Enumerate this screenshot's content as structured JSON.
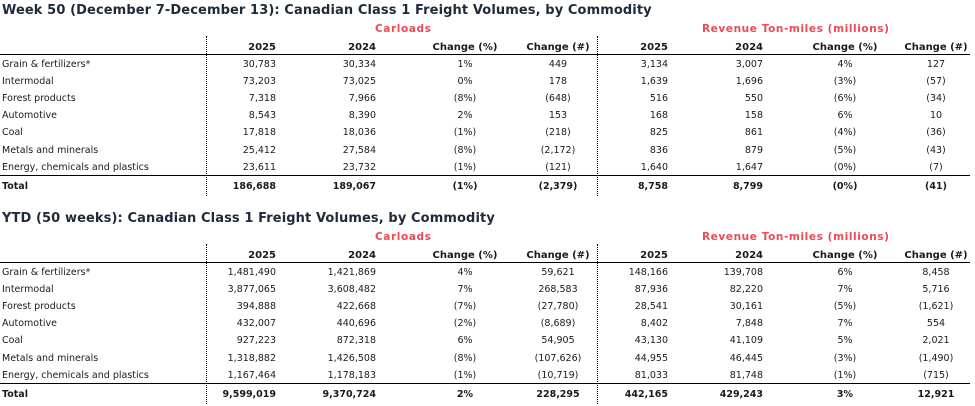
{
  "tables": [
    {
      "title": "Week 50 (December 7-December 13): Canadian Class 1 Freight Volumes, by Commodity",
      "group_labels": {
        "carloads": "Carloads",
        "revenue": "Revenue Ton-miles (millions)"
      },
      "columns": [
        "2025",
        "2024",
        "Change (%)",
        "Change (#)",
        "2025",
        "2024",
        "Change (%)",
        "Change (#)"
      ],
      "rows": [
        {
          "label": "Grain & fertilizers*",
          "values": [
            "30,783",
            "30,334",
            "1%",
            "449",
            "3,134",
            "3,007",
            "4%",
            "127"
          ]
        },
        {
          "label": "Intermodal",
          "values": [
            "73,203",
            "73,025",
            "0%",
            "178",
            "1,639",
            "1,696",
            "(3%)",
            "(57)"
          ]
        },
        {
          "label": "Forest products",
          "values": [
            "7,318",
            "7,966",
            "(8%)",
            "(648)",
            "516",
            "550",
            "(6%)",
            "(34)"
          ]
        },
        {
          "label": "Automotive",
          "values": [
            "8,543",
            "8,390",
            "2%",
            "153",
            "168",
            "158",
            "6%",
            "10"
          ]
        },
        {
          "label": "Coal",
          "values": [
            "17,818",
            "18,036",
            "(1%)",
            "(218)",
            "825",
            "861",
            "(4%)",
            "(36)"
          ]
        },
        {
          "label": "Metals and minerals",
          "values": [
            "25,412",
            "27,584",
            "(8%)",
            "(2,172)",
            "836",
            "879",
            "(5%)",
            "(43)"
          ]
        },
        {
          "label": "Energy, chemicals and plastics",
          "values": [
            "23,611",
            "23,732",
            "(1%)",
            "(121)",
            "1,640",
            "1,647",
            "(0%)",
            "(7)"
          ]
        }
      ],
      "total": {
        "label": "Total",
        "values": [
          "186,688",
          "189,067",
          "(1%)",
          "(2,379)",
          "8,758",
          "8,799",
          "(0%)",
          "(41)"
        ]
      }
    },
    {
      "title": "YTD (50 weeks): Canadian Class 1 Freight Volumes, by Commodity",
      "group_labels": {
        "carloads": "Carloads",
        "revenue": "Revenue Ton-miles (millions)"
      },
      "columns": [
        "2025",
        "2024",
        "Change (%)",
        "Change (#)",
        "2025",
        "2024",
        "Change (%)",
        "Change (#)"
      ],
      "rows": [
        {
          "label": "Grain & fertilizers*",
          "values": [
            "1,481,490",
            "1,421,869",
            "4%",
            "59,621",
            "148,166",
            "139,708",
            "6%",
            "8,458"
          ]
        },
        {
          "label": "Intermodal",
          "values": [
            "3,877,065",
            "3,608,482",
            "7%",
            "268,583",
            "87,936",
            "82,220",
            "7%",
            "5,716"
          ]
        },
        {
          "label": "Forest products",
          "values": [
            "394,888",
            "422,668",
            "(7%)",
            "(27,780)",
            "28,541",
            "30,161",
            "(5%)",
            "(1,621)"
          ]
        },
        {
          "label": "Automotive",
          "values": [
            "432,007",
            "440,696",
            "(2%)",
            "(8,689)",
            "8,402",
            "7,848",
            "7%",
            "554"
          ]
        },
        {
          "label": "Coal",
          "values": [
            "927,223",
            "872,318",
            "6%",
            "54,905",
            "43,130",
            "41,109",
            "5%",
            "2,021"
          ]
        },
        {
          "label": "Metals and minerals",
          "values": [
            "1,318,882",
            "1,426,508",
            "(8%)",
            "(107,626)",
            "44,955",
            "46,445",
            "(3%)",
            "(1,490)"
          ]
        },
        {
          "label": "Energy, chemicals and plastics",
          "values": [
            "1,167,464",
            "1,178,183",
            "(1%)",
            "(10,719)",
            "81,033",
            "81,748",
            "(1%)",
            "(715)"
          ]
        }
      ],
      "total": {
        "label": "Total",
        "values": [
          "9,599,019",
          "9,370,724",
          "2%",
          "228,295",
          "442,165",
          "429,243",
          "3%",
          "12,921"
        ]
      }
    }
  ],
  "colors": {
    "title": "#1d2b3a",
    "group_label": "#ec4a55",
    "text": "#1a1a1a",
    "rule": "#000000"
  }
}
